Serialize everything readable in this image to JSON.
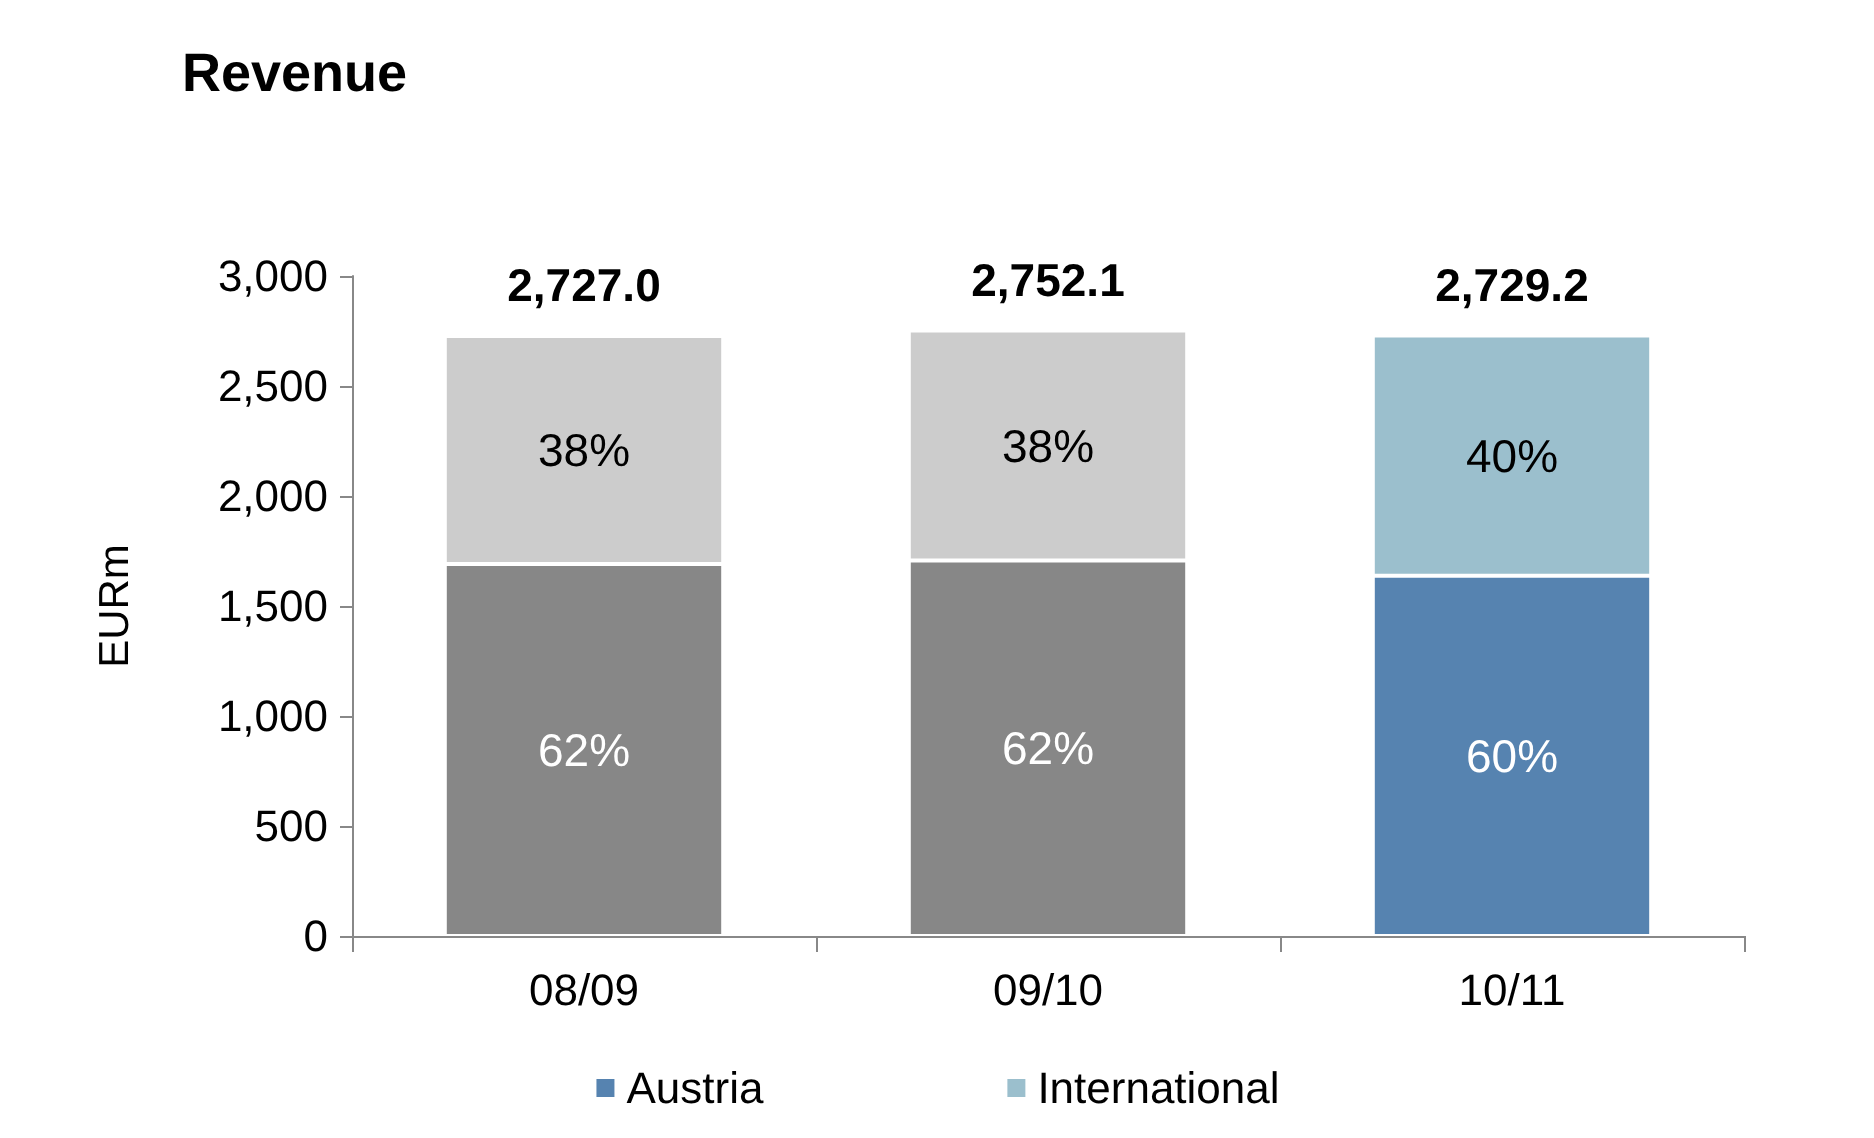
{
  "chart_data": {
    "type": "bar",
    "title": "Revenue",
    "ylabel": "EURm",
    "categories": [
      "08/09",
      "09/10",
      "10/11"
    ],
    "stacked": true,
    "series": [
      {
        "name": "Austria",
        "color": "#5683b0",
        "colors": [
          "#878787",
          "#878787",
          "#5683b0"
        ],
        "values": [
          1690.7,
          1706.3,
          1637.5
        ]
      },
      {
        "name": "International",
        "color": "#9bbfcd",
        "colors": [
          "#cccccc",
          "#cccccc",
          "#9bbfcd"
        ],
        "values": [
          1036.3,
          1045.8,
          1091.7
        ]
      }
    ],
    "totals": [
      "2,727.0",
      "2,752.1",
      "2,729.2"
    ],
    "annotations": [
      "62%",
      "38%",
      "62%",
      "38%",
      "60%",
      "40%"
    ],
    "ylim": [
      0,
      3000
    ],
    "yticks": [
      {
        "value": 0,
        "label": "0"
      },
      {
        "value": 500,
        "label": "500"
      },
      {
        "value": 1000,
        "label": "1,000"
      },
      {
        "value": 1500,
        "label": "1,500"
      },
      {
        "value": 2000,
        "label": "2,000"
      },
      {
        "value": 2500,
        "label": "2,500"
      },
      {
        "value": 3000,
        "label": "3,000"
      }
    ],
    "grid": false,
    "legend": "bottom"
  }
}
